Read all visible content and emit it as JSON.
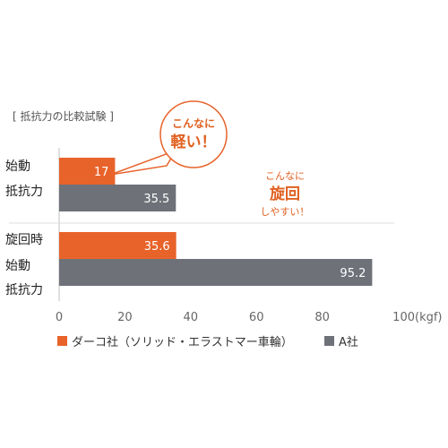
{
  "chart_data": {
    "type": "bar",
    "orientation": "horizontal",
    "title": "[ 抵抗力の比較試験 ]",
    "categories": [
      {
        "lines": [
          "始動",
          "抵抗力"
        ]
      },
      {
        "lines": [
          "旋回時",
          "始動",
          "抵抗力"
        ]
      }
    ],
    "series": [
      {
        "name": "ダーコ社（ソリッド・エラストマー車輪）",
        "color": "#e8632a",
        "values": [
          17,
          35.6
        ]
      },
      {
        "name": "A社",
        "color": "#6e7178",
        "values": [
          35.5,
          95.2
        ]
      }
    ],
    "value_labels": [
      [
        "17",
        "35.5"
      ],
      [
        "35.6",
        "95.2"
      ]
    ],
    "xlim": [
      0,
      100
    ],
    "xticks": [
      "0",
      "20",
      "40",
      "60",
      "80",
      "100"
    ],
    "x_unit": "(kgf)",
    "legend_position": "bottom",
    "annotations": {
      "bubble": {
        "line1": "こんなに",
        "line2": "軽い！"
      },
      "right_text": {
        "line1": "こんなに",
        "line2": "旋回",
        "line3": "しやすい！"
      }
    }
  }
}
